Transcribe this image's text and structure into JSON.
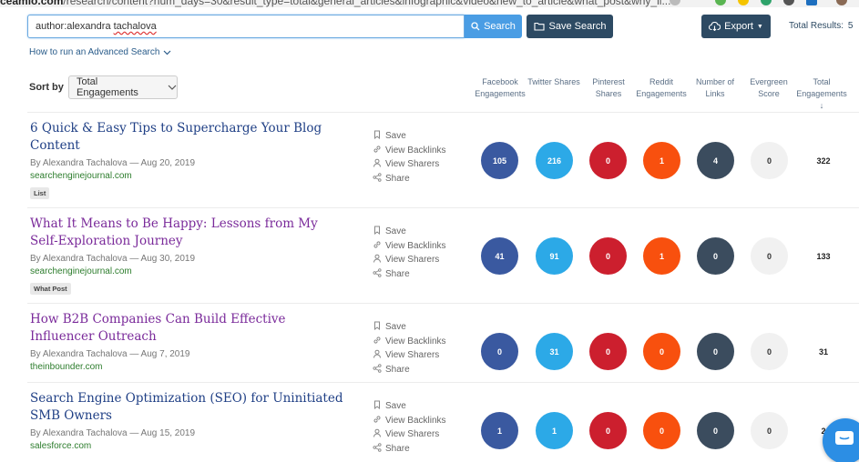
{
  "browser": {
    "url_host": "ceamio.com",
    "url_path": "/research/content?num_days=30&result_type=total&general_articles&infographic&video&new_to_article&what_post&why_li..."
  },
  "search": {
    "query_prefix": "author:alexandra ",
    "query_misspelled": "tachalova",
    "search_label": "Search",
    "save_label": "Save Search",
    "export_label": "Export",
    "total_results_label": "Total Results:",
    "total_results_value": "5",
    "advanced_link": "How to run an Advanced Search"
  },
  "sort": {
    "label": "Sort by",
    "selected": "Total Engagements"
  },
  "columns": [
    "Facebook Engagements",
    "Twitter Shares",
    "Pinterest Shares",
    "Reddit Engagements",
    "Number of Links",
    "Evergreen Score",
    "Total Engagements"
  ],
  "action_labels": {
    "save": "Save",
    "backlinks": "View Backlinks",
    "sharers": "View Sharers",
    "share": "Share"
  },
  "results": [
    {
      "title": "6 Quick & Easy Tips to Supercharge Your Blog Content",
      "byline": "By Alexandra Tachalova — Aug 20, 2019",
      "domain": "searchenginejournal.com",
      "tag": "List",
      "facebook": "105",
      "twitter": "216",
      "pinterest": "0",
      "reddit": "1",
      "links": "4",
      "evergreen": "0",
      "total": "322"
    },
    {
      "title": "What It Means to Be Happy: Lessons from My Self-Exploration Journey",
      "byline": "By Alexandra Tachalova — Aug 30, 2019",
      "domain": "searchenginejournal.com",
      "tag": "What Post",
      "facebook": "41",
      "twitter": "91",
      "pinterest": "0",
      "reddit": "1",
      "links": "0",
      "evergreen": "0",
      "total": "133"
    },
    {
      "title": "How B2B Companies Can Build Effective Influencer Outreach",
      "byline": "By Alexandra Tachalova — Aug 7, 2019",
      "domain": "theinbounder.com",
      "tag": "",
      "facebook": "0",
      "twitter": "31",
      "pinterest": "0",
      "reddit": "0",
      "links": "0",
      "evergreen": "0",
      "total": "31"
    },
    {
      "title": "Search Engine Optimization (SEO) for Uninitiated SMB Owners",
      "byline": "By Alexandra Tachalova — Aug 15, 2019",
      "domain": "salesforce.com",
      "tag": "",
      "facebook": "1",
      "twitter": "1",
      "pinterest": "0",
      "reddit": "0",
      "links": "0",
      "evergreen": "0",
      "total": "2"
    }
  ],
  "icons": {
    "search": "search-icon",
    "folder": "folder-icon",
    "cloud": "cloud-download-icon",
    "chevron": "chevron-down-icon",
    "bookmark": "bookmark-icon",
    "link": "link-icon",
    "user": "user-icon",
    "share": "share-icon",
    "chat": "chat-icon"
  },
  "colors": {
    "facebook": "#3a59a0",
    "twitter": "#2ca9e7",
    "pinterest": "#cc1f2e",
    "reddit": "#f8500e",
    "links": "#3b4c5e",
    "evergreen": "#f1f1f1",
    "primary_button": "#2d4a63",
    "search_button": "#4a9de4"
  }
}
